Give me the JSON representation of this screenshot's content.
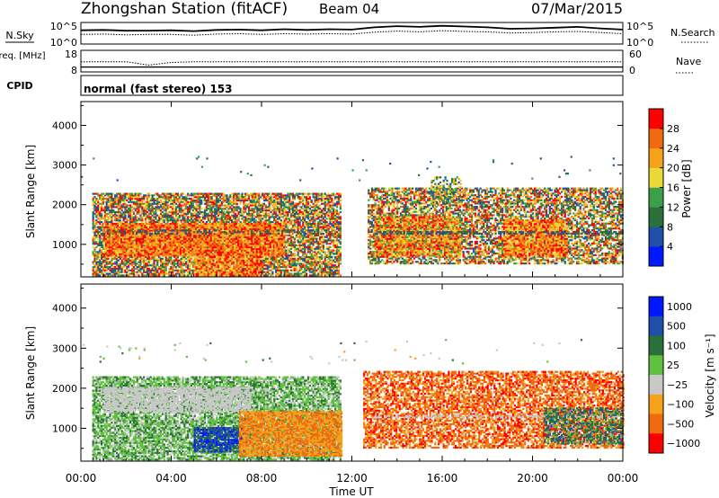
{
  "header": {
    "station_title": "Zhongshan Station (fitACF)",
    "beam": "Beam 04",
    "date": "07/Mar/2015"
  },
  "colors": {
    "power_scale": [
      "#0018ff",
      "#1f4fa8",
      "#2b6f3a",
      "#3aa04a",
      "#e8d83a",
      "#f6a21a",
      "#f06a10",
      "#ff0000"
    ],
    "velocity_scale": [
      "#0018ff",
      "#1f4fa8",
      "#2b6f3a",
      "#60c040",
      "#c8c8c8",
      "#f6a21a",
      "#f06a10",
      "#ff0000"
    ]
  },
  "chart_data": [
    {
      "type": "line",
      "panel": "nsky-nsearch",
      "left_label": "N.Sky",
      "left_ticks": [
        "10^5",
        "10^0"
      ],
      "right_label": "N.Search",
      "right_ticks": [
        "10^5",
        "10^0"
      ],
      "series_style": {
        "N.Sky": "solid",
        "N.Search": "dotted"
      },
      "x": [
        0,
        1,
        2,
        3,
        4,
        5,
        6,
        7,
        8,
        9,
        10,
        11,
        12,
        13,
        14,
        15,
        16,
        17,
        18,
        19,
        20,
        21,
        22,
        23,
        24
      ],
      "log_n_sky": [
        3.4,
        3.5,
        3.3,
        3.3,
        3.4,
        3.2,
        3.5,
        3.6,
        3.4,
        3.7,
        3.5,
        3.7,
        3.6,
        4.2,
        4.5,
        4.3,
        4.6,
        4.4,
        4.2,
        3.8,
        3.9,
        4.1,
        4.3,
        3.9,
        3.6
      ],
      "log_n_search": [
        2.3,
        2.4,
        2.2,
        2.3,
        2.3,
        2.1,
        2.4,
        2.5,
        2.3,
        2.5,
        2.4,
        2.5,
        2.4,
        2.9,
        3.2,
        3.0,
        3.3,
        3.1,
        3.0,
        2.7,
        2.8,
        3.0,
        3.1,
        2.8,
        2.5
      ],
      "log_ylim": [
        0,
        5
      ]
    },
    {
      "type": "line",
      "panel": "freq-nave",
      "left_label": "Freq. [MHz]",
      "left_ticks": [
        "18",
        "8"
      ],
      "right_label": "Nave",
      "right_ticks": [
        "60",
        "0"
      ],
      "series_style": {
        "Freq": "solid",
        "Nave": "dotted"
      },
      "x": [
        0,
        1,
        2,
        3,
        4,
        5,
        6,
        7,
        8,
        9,
        10,
        11,
        12,
        13,
        14,
        15,
        16,
        17,
        18,
        19,
        20,
        21,
        22,
        23,
        24
      ],
      "freq_mhz": [
        10,
        10,
        10,
        10,
        10,
        10,
        10,
        10,
        10,
        10,
        10,
        10,
        10,
        10,
        10,
        10,
        10,
        10,
        10,
        10,
        10,
        10,
        10,
        10,
        10
      ],
      "nave": [
        28,
        28,
        28,
        18,
        26,
        28,
        28,
        28,
        28,
        28,
        28,
        28,
        28,
        28,
        28,
        28,
        28,
        28,
        28,
        28,
        28,
        28,
        28,
        28,
        28
      ],
      "freq_ylim": [
        8,
        18
      ],
      "nave_ylim": [
        0,
        60
      ]
    },
    {
      "type": "table",
      "panel": "cpid",
      "label": "CPID",
      "value": "normal (fast stereo) 153"
    },
    {
      "type": "heatmap",
      "panel": "power",
      "ylabel": "Slant Range [km]",
      "yticks": [
        1000,
        2000,
        3000,
        4000
      ],
      "ylim": [
        180,
        4600
      ],
      "xlim": [
        0,
        24
      ],
      "colorbar_label": "Power [dB]",
      "colorbar_ticks": [
        4,
        8,
        12,
        16,
        20,
        24,
        28
      ],
      "colorbar_range": [
        0,
        32
      ],
      "regions": [
        {
          "t0": 0.5,
          "t1": 11.5,
          "r0": 200,
          "r1": 2300,
          "density": 0.78,
          "vmin": 4,
          "vmax": 32
        },
        {
          "t0": 1.0,
          "t1": 9.0,
          "r0": 700,
          "r1": 1500,
          "density": 0.95,
          "vmin": 18,
          "vmax": 32
        },
        {
          "t0": 5.0,
          "t1": 8.0,
          "r0": 200,
          "r1": 700,
          "density": 0.9,
          "vmin": 16,
          "vmax": 32
        },
        {
          "t0": 0.7,
          "t1": 11.0,
          "r0": 1250,
          "r1": 1350,
          "density": 0.3,
          "vmin": 4,
          "vmax": 12
        },
        {
          "t0": 12.7,
          "t1": 24.0,
          "r0": 500,
          "r1": 2400,
          "density": 0.65,
          "vmin": 4,
          "vmax": 32
        },
        {
          "t0": 13.0,
          "t1": 16.8,
          "r0": 700,
          "r1": 1700,
          "density": 0.85,
          "vmin": 14,
          "vmax": 32
        },
        {
          "t0": 18.7,
          "t1": 21.5,
          "r0": 700,
          "r1": 1600,
          "density": 0.9,
          "vmin": 16,
          "vmax": 32
        },
        {
          "t0": 13.0,
          "t1": 24.0,
          "r0": 1250,
          "r1": 1320,
          "density": 0.5,
          "vmin": 4,
          "vmax": 12
        },
        {
          "t0": 15.5,
          "t1": 16.8,
          "r0": 2000,
          "r1": 2700,
          "density": 0.4,
          "vmin": 6,
          "vmax": 24
        },
        {
          "t0": 0.0,
          "t1": 24.0,
          "r0": 2600,
          "r1": 3200,
          "density": 0.01,
          "vmin": 4,
          "vmax": 16
        }
      ]
    },
    {
      "type": "heatmap",
      "panel": "velocity",
      "ylabel": "Slant Range [km]",
      "yticks": [
        1000,
        2000,
        3000,
        4000
      ],
      "ylim": [
        180,
        4600
      ],
      "xlim": [
        0,
        24
      ],
      "xticks": [
        "00:00",
        "04:00",
        "08:00",
        "12:00",
        "16:00",
        "20:00",
        "00:00"
      ],
      "xlabel": "Time UT",
      "colorbar_label": "Velocity [m s⁻¹]",
      "colorbar_ticks": [
        "1000",
        "500",
        "100",
        "25",
        "−25",
        "−100",
        "−500",
        "−1000"
      ],
      "regions": [
        {
          "t0": 0.5,
          "t1": 11.5,
          "r0": 200,
          "r1": 2300,
          "density": 0.78,
          "vmin": 2,
          "vmax": 4
        },
        {
          "t0": 1.0,
          "t1": 7.5,
          "r0": 1400,
          "r1": 2000,
          "density": 0.7,
          "vmin": 4,
          "vmax": 4
        },
        {
          "t0": 5.0,
          "t1": 7.3,
          "r0": 400,
          "r1": 1000,
          "density": 0.8,
          "vmin": 0,
          "vmax": 2
        },
        {
          "t0": 7.0,
          "t1": 11.5,
          "r0": 300,
          "r1": 1400,
          "density": 0.8,
          "vmin": 5,
          "vmax": 6
        },
        {
          "t0": 12.5,
          "t1": 24.0,
          "r0": 500,
          "r1": 2400,
          "density": 0.65,
          "vmin": 5,
          "vmax": 7
        },
        {
          "t0": 13.0,
          "t1": 24.0,
          "r0": 1250,
          "r1": 1320,
          "density": 0.45,
          "vmin": 4,
          "vmax": 4
        },
        {
          "t0": 20.5,
          "t1": 24.0,
          "r0": 600,
          "r1": 1500,
          "density": 0.5,
          "vmin": 1,
          "vmax": 3
        },
        {
          "t0": 0.0,
          "t1": 24.0,
          "r0": 2600,
          "r1": 3200,
          "density": 0.01,
          "vmin": 2,
          "vmax": 5
        }
      ]
    }
  ]
}
